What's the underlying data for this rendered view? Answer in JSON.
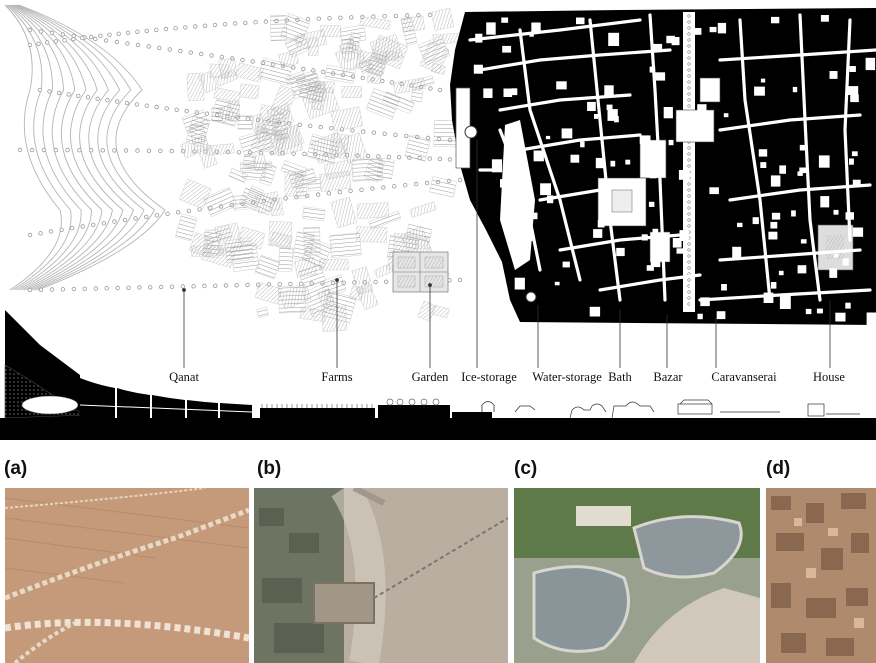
{
  "labels": {
    "qanat": "Qanat",
    "farms": "Farms",
    "garden": "Garden",
    "ice_storage": "Ice-storage",
    "water_storage": "Water-storage",
    "bath": "Bath",
    "bazar": "Bazar",
    "caravanserai": "Caravanserai",
    "house": "House"
  },
  "panels": {
    "a": "(a)",
    "b": "(b)",
    "c": "(c)",
    "d": "(d)"
  },
  "colors": {
    "ink": "#000000",
    "farm_grey": "#bdbdbd",
    "desert_a": "#c49a7a",
    "desert_b": "#b9aea0",
    "water_c": "#8d979c",
    "adobe_d": "#b08a6c"
  }
}
